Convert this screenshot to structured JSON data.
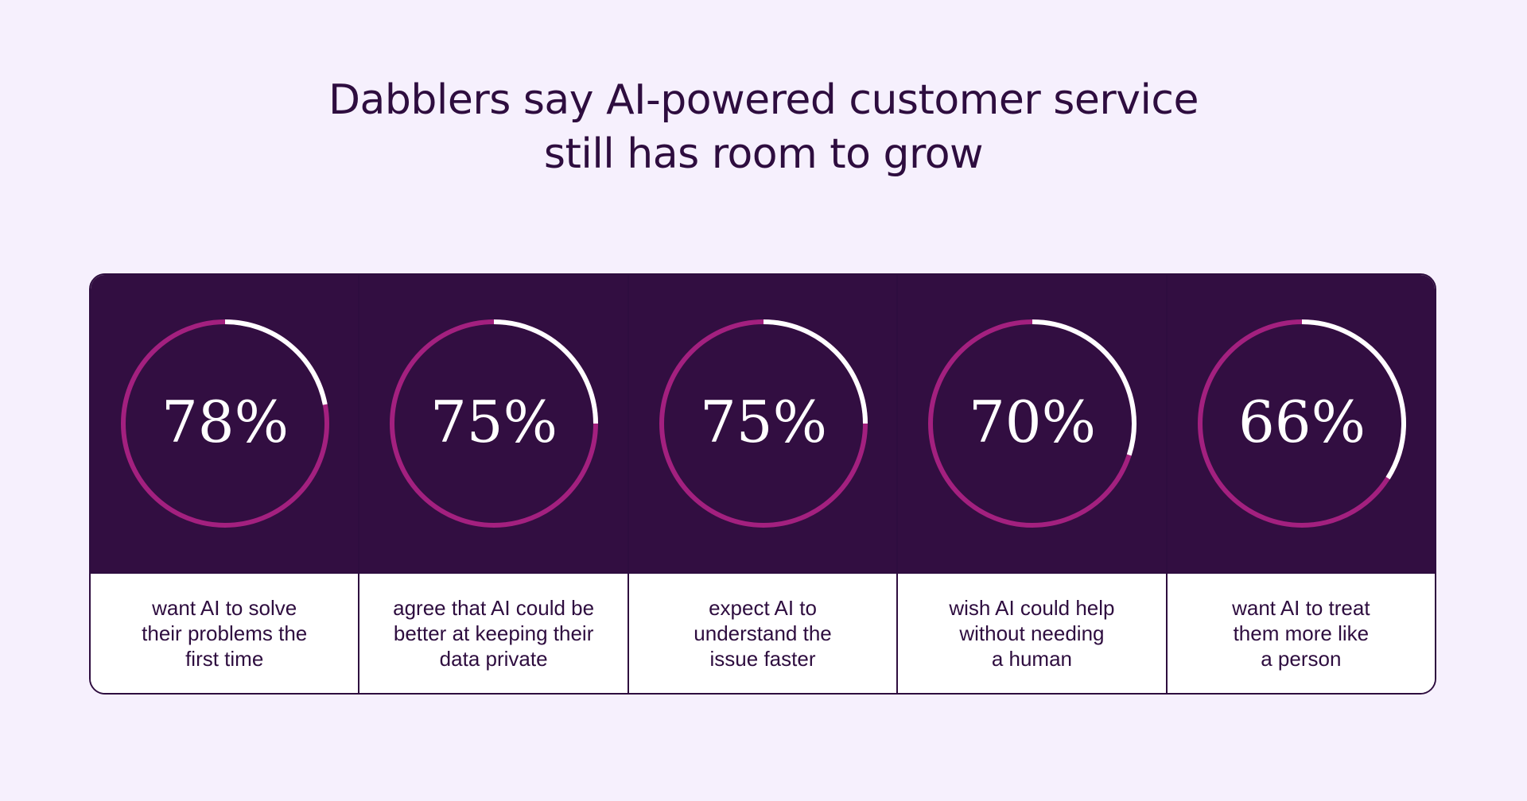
{
  "title": {
    "line1": "Dabblers say AI-powered customer service",
    "line2": "still has room to grow"
  },
  "colors": {
    "background": "#f6f0fd",
    "panel": "#320e41",
    "ring": "#a3207f",
    "progress": "#ffffff",
    "text": "#2e0d3f"
  },
  "chart_data": {
    "type": "donut-stats",
    "items": [
      {
        "value": 78,
        "label": "78%",
        "caption": [
          "want AI to solve",
          "their problems the",
          "first time"
        ]
      },
      {
        "value": 75,
        "label": "75%",
        "caption": [
          "agree that AI could be",
          "better at keeping their",
          "data private"
        ]
      },
      {
        "value": 75,
        "label": "75%",
        "caption": [
          "expect AI to",
          "understand the",
          "issue faster"
        ]
      },
      {
        "value": 70,
        "label": "70%",
        "caption": [
          "wish AI could help",
          "without needing",
          "a human"
        ]
      },
      {
        "value": 66,
        "label": "66%",
        "caption": [
          "want AI to treat",
          "them more like",
          "a person"
        ]
      }
    ]
  }
}
